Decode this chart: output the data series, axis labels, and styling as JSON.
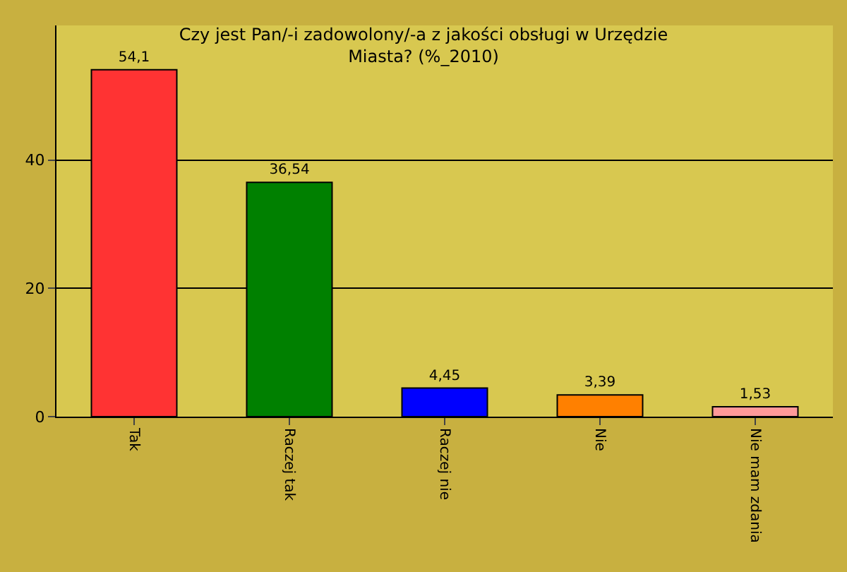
{
  "chart_data": {
    "type": "bar",
    "title": "Czy jest Pan/-i zadowolony/-a z jakości obsługi w Urzędzie\nMiasta? (%_2010)",
    "categories": [
      "Tak",
      "Raczej tak",
      "Raczej nie",
      "Nie",
      "Nie mam zdania"
    ],
    "values": [
      54.1,
      36.54,
      4.45,
      3.39,
      1.53
    ],
    "colors": [
      "#ff3333",
      "#008000",
      "#0000ff",
      "#ff8000",
      "#ff9999"
    ],
    "value_labels": [
      "54,1",
      "36,54",
      "4,45",
      "3,39",
      "1,53"
    ],
    "ylim": [
      0,
      61
    ],
    "yticks": [
      0,
      20,
      40
    ],
    "grid": "y",
    "legend": false
  }
}
